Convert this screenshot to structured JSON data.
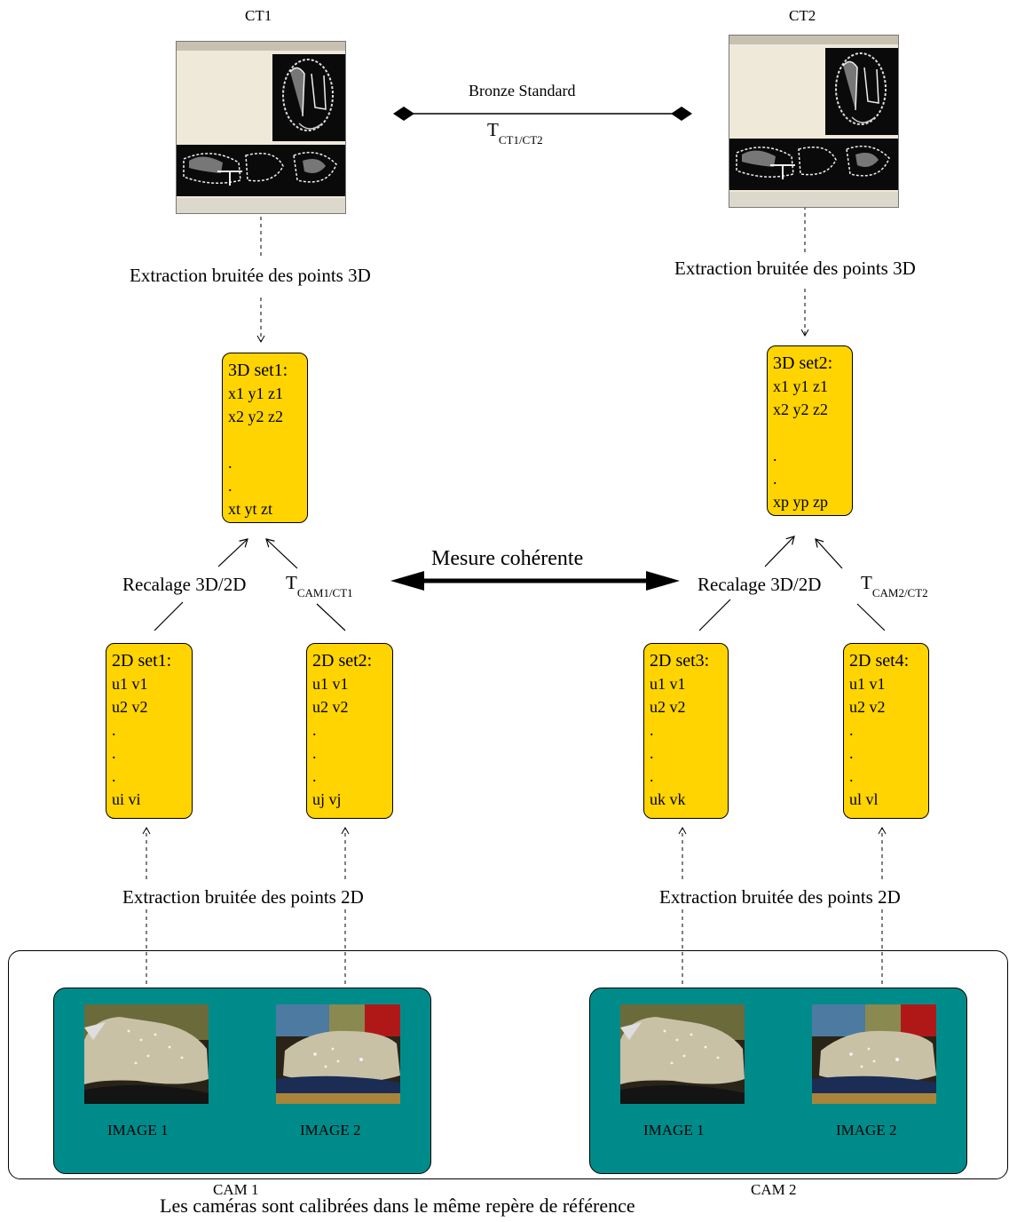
{
  "ct": {
    "ct1_label": "CT1",
    "ct2_label": "CT2"
  },
  "bronze": {
    "label": "Bronze Standard",
    "t_main": "T",
    "t_sub": "CT1/CT2"
  },
  "extraction3d": {
    "left": "Extraction bruitée des points 3D",
    "right": "Extraction bruitée des points 3D"
  },
  "set3d": [
    {
      "title": "3D set1:",
      "rows": [
        "x1 y1 z1",
        "x2 y2 z2",
        "",
        ".",
        ".",
        "xt yt zt"
      ]
    },
    {
      "title": "3D set2:",
      "rows": [
        "x1 y1 z1",
        "x2 y2 z2",
        "",
        ".",
        ".",
        "xp yp zp"
      ]
    }
  ],
  "recalage": {
    "left": "Recalage 3D/2D",
    "right": "Recalage 3D/2D",
    "t_left_main": "T",
    "t_left_sub": "CAM1/CT1",
    "t_right_main": "T",
    "t_right_sub": "CAM2/CT2"
  },
  "mesure": "Mesure cohérente",
  "set2d": [
    {
      "title": "2D set1:",
      "rows": [
        "u1 v1",
        "u2 v2",
        ".",
        ".",
        ".",
        "ui vi"
      ]
    },
    {
      "title": "2D set2:",
      "rows": [
        "u1 v1",
        "u2 v2",
        ".",
        ".",
        ".",
        "uj vj"
      ]
    },
    {
      "title": "2D set3:",
      "rows": [
        "u1 v1",
        "u2 v2",
        ".",
        ".",
        ".",
        "uk vk"
      ]
    },
    {
      "title": "2D set4:",
      "rows": [
        "u1 v1",
        "u2 v2",
        ".",
        ".",
        ".",
        "ul vl"
      ]
    }
  ],
  "extraction2d": {
    "left": "Extraction bruitée des points 2D",
    "right": "Extraction bruitée des points 2D"
  },
  "cams": [
    {
      "image1": "IMAGE 1",
      "image2": "IMAGE 2",
      "name": "CAM 1"
    },
    {
      "image1": "IMAGE 1",
      "image2": "IMAGE 2",
      "name": "CAM 2"
    }
  ],
  "footer": "Les caméras sont calibrées dans le même repère de référence",
  "colors": {
    "set_fill": "#ffd400",
    "cam_fill": "#008b8b"
  }
}
